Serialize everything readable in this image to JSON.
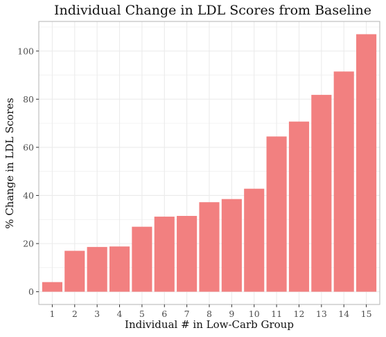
{
  "chart_data": {
    "type": "bar",
    "title": "Individual Change in LDL Scores from Baseline",
    "xlabel": "Individual # in Low-Carb Group",
    "ylabel": "% Change in LDL Scores",
    "categories": [
      "1",
      "2",
      "3",
      "4",
      "5",
      "6",
      "7",
      "8",
      "9",
      "10",
      "11",
      "12",
      "13",
      "14",
      "15"
    ],
    "values": [
      4,
      17,
      18.6,
      18.8,
      27,
      31.2,
      31.5,
      37.2,
      38.5,
      42.8,
      64.5,
      70.7,
      81.8,
      91.5,
      107
    ],
    "ylim": [
      -5.3,
      112.3
    ],
    "yticks": [
      0,
      20,
      40,
      60,
      80,
      100
    ],
    "grid": true,
    "bar_color": "#F28080",
    "grid_color": "#EBEBEB",
    "panel_border_color": "#B3B3B3"
  }
}
